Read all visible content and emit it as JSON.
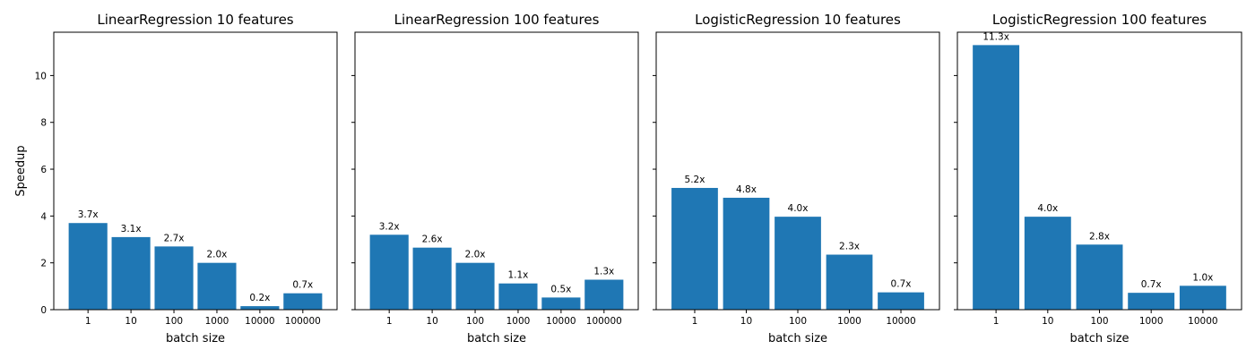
{
  "figure": {
    "ylabel": "Speedup",
    "ylim": [
      0,
      11.85
    ],
    "yticks": [
      0,
      2,
      4,
      6,
      8,
      10
    ],
    "bar_color": "#1f77b4",
    "sharey": true
  },
  "chart_data": [
    {
      "type": "bar",
      "title": "LinearRegression 10 features",
      "xlabel": "batch size",
      "ylabel": "Speedup",
      "categories": [
        "1",
        "10",
        "100",
        "1000",
        "10000",
        "100000"
      ],
      "values": [
        3.7,
        3.1,
        2.7,
        2.0,
        0.15,
        0.7
      ],
      "labels": [
        "3.7x",
        "3.1x",
        "2.7x",
        "2.0x",
        "0.2x",
        "0.7x"
      ],
      "ylim": [
        0,
        11.85
      ],
      "grid": false
    },
    {
      "type": "bar",
      "title": "LinearRegression 100 features",
      "xlabel": "batch size",
      "ylabel": "",
      "categories": [
        "1",
        "10",
        "100",
        "1000",
        "10000",
        "100000"
      ],
      "values": [
        3.2,
        2.65,
        2.0,
        1.12,
        0.52,
        1.28
      ],
      "labels": [
        "3.2x",
        "2.6x",
        "2.0x",
        "1.1x",
        "0.5x",
        "1.3x"
      ],
      "ylim": [
        0,
        11.85
      ],
      "grid": false
    },
    {
      "type": "bar",
      "title": "LogisticRegression 10 features",
      "xlabel": "batch size",
      "ylabel": "",
      "categories": [
        "1",
        "10",
        "100",
        "1000",
        "10000"
      ],
      "values": [
        5.2,
        4.78,
        3.97,
        2.35,
        0.74
      ],
      "labels": [
        "5.2x",
        "4.8x",
        "4.0x",
        "2.3x",
        "0.7x"
      ],
      "ylim": [
        0,
        11.85
      ],
      "grid": false
    },
    {
      "type": "bar",
      "title": "LogisticRegression 100 features",
      "xlabel": "batch size",
      "ylabel": "",
      "categories": [
        "1",
        "10",
        "100",
        "1000",
        "10000"
      ],
      "values": [
        11.3,
        3.97,
        2.78,
        0.72,
        1.02
      ],
      "labels": [
        "11.3x",
        "4.0x",
        "2.8x",
        "0.7x",
        "1.0x"
      ],
      "ylim": [
        0,
        11.85
      ],
      "grid": false
    }
  ]
}
